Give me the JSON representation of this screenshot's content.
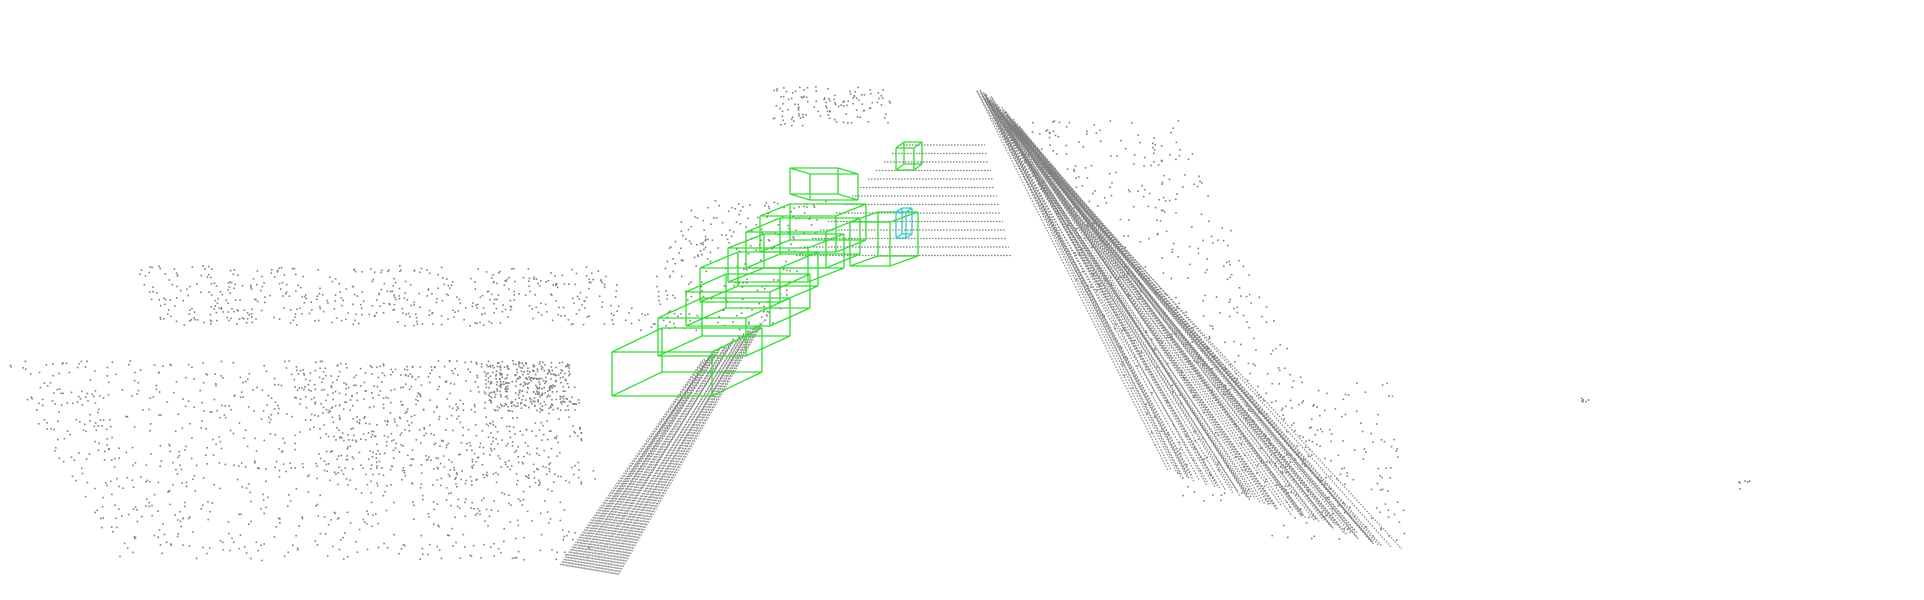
{
  "scene": {
    "background_color": "#ffffff",
    "point_color": "#808080",
    "box_colors": {
      "car": "#33dd33",
      "pedestrian": "#33cccc"
    },
    "object_count": {
      "car": 10,
      "pedestrian": 1
    }
  }
}
